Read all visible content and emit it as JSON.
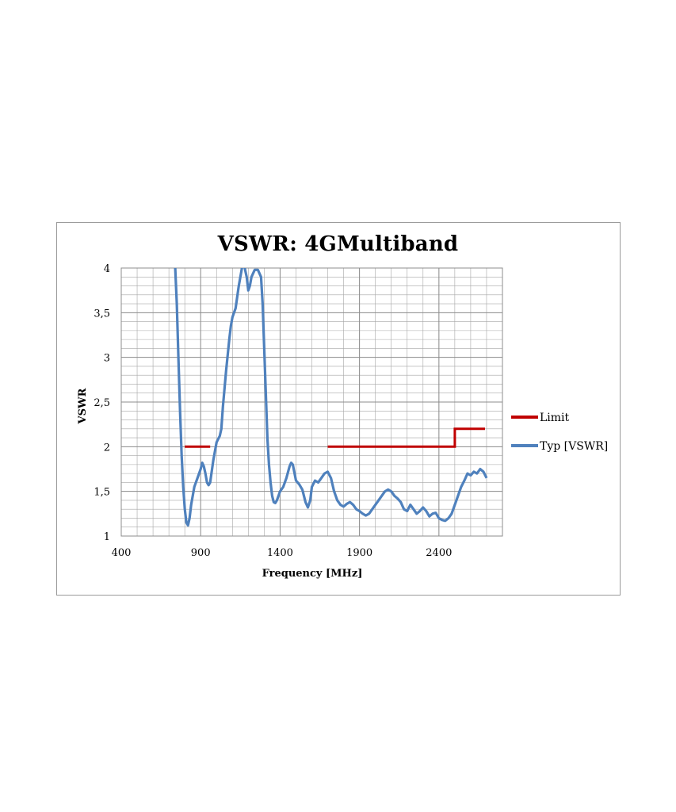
{
  "colors": {
    "limit": "#c00000",
    "typ": "#4f81bd",
    "grid": "#a6a6a6",
    "border": "#9a9a9a"
  },
  "chart_data": {
    "type": "line",
    "title": "VSWR: 4GMultiband",
    "xlabel": "Frequency [MHz]",
    "ylabel": "VSWR",
    "xlim": [
      400,
      2800
    ],
    "ylim": [
      1,
      4
    ],
    "x_ticks": [
      400,
      900,
      1400,
      1900,
      2400
    ],
    "x_tick_labels": [
      "400",
      "900",
      "1400",
      "1900",
      "2400"
    ],
    "y_ticks": [
      1,
      1.5,
      2,
      2.5,
      3,
      3.5,
      4
    ],
    "y_tick_labels": [
      "1",
      "1,5",
      "2",
      "2,5",
      "3",
      "3,5",
      "4"
    ],
    "grid": true,
    "legend_position": "right",
    "series": [
      {
        "name": "Limit",
        "segments": [
          [
            [
              800,
              2.0
            ],
            [
              960,
              2.0
            ]
          ],
          [
            [
              1700,
              2.0
            ],
            [
              2500,
              2.0
            ],
            [
              2500,
              2.2
            ],
            [
              2690,
              2.2
            ]
          ]
        ]
      },
      {
        "name": "Typ [VSWR]",
        "points": [
          [
            740,
            4.0
          ],
          [
            750,
            3.6
          ],
          [
            760,
            3.0
          ],
          [
            770,
            2.4
          ],
          [
            780,
            1.9
          ],
          [
            790,
            1.55
          ],
          [
            800,
            1.3
          ],
          [
            810,
            1.15
          ],
          [
            820,
            1.12
          ],
          [
            830,
            1.2
          ],
          [
            840,
            1.35
          ],
          [
            860,
            1.55
          ],
          [
            880,
            1.65
          ],
          [
            900,
            1.75
          ],
          [
            910,
            1.82
          ],
          [
            920,
            1.78
          ],
          [
            930,
            1.7
          ],
          [
            940,
            1.6
          ],
          [
            950,
            1.57
          ],
          [
            960,
            1.6
          ],
          [
            980,
            1.85
          ],
          [
            1000,
            2.05
          ],
          [
            1020,
            2.12
          ],
          [
            1030,
            2.2
          ],
          [
            1040,
            2.45
          ],
          [
            1060,
            2.85
          ],
          [
            1080,
            3.2
          ],
          [
            1090,
            3.35
          ],
          [
            1100,
            3.45
          ],
          [
            1110,
            3.5
          ],
          [
            1120,
            3.55
          ],
          [
            1140,
            3.8
          ],
          [
            1160,
            4.0
          ],
          [
            1170,
            4.08
          ],
          [
            1180,
            3.98
          ],
          [
            1190,
            3.9
          ],
          [
            1200,
            3.75
          ],
          [
            1210,
            3.8
          ],
          [
            1220,
            3.9
          ],
          [
            1240,
            3.98
          ],
          [
            1260,
            3.98
          ],
          [
            1280,
            3.9
          ],
          [
            1290,
            3.6
          ],
          [
            1300,
            3.1
          ],
          [
            1310,
            2.6
          ],
          [
            1320,
            2.1
          ],
          [
            1330,
            1.8
          ],
          [
            1340,
            1.6
          ],
          [
            1350,
            1.45
          ],
          [
            1360,
            1.38
          ],
          [
            1370,
            1.37
          ],
          [
            1380,
            1.4
          ],
          [
            1400,
            1.5
          ],
          [
            1420,
            1.55
          ],
          [
            1440,
            1.65
          ],
          [
            1460,
            1.78
          ],
          [
            1470,
            1.82
          ],
          [
            1480,
            1.8
          ],
          [
            1500,
            1.62
          ],
          [
            1520,
            1.58
          ],
          [
            1540,
            1.52
          ],
          [
            1560,
            1.38
          ],
          [
            1575,
            1.32
          ],
          [
            1590,
            1.4
          ],
          [
            1600,
            1.55
          ],
          [
            1620,
            1.62
          ],
          [
            1640,
            1.6
          ],
          [
            1660,
            1.65
          ],
          [
            1680,
            1.7
          ],
          [
            1700,
            1.72
          ],
          [
            1720,
            1.65
          ],
          [
            1740,
            1.5
          ],
          [
            1760,
            1.4
          ],
          [
            1780,
            1.35
          ],
          [
            1800,
            1.33
          ],
          [
            1820,
            1.36
          ],
          [
            1840,
            1.38
          ],
          [
            1860,
            1.35
          ],
          [
            1880,
            1.3
          ],
          [
            1900,
            1.28
          ],
          [
            1920,
            1.25
          ],
          [
            1940,
            1.23
          ],
          [
            1960,
            1.25
          ],
          [
            1980,
            1.3
          ],
          [
            2000,
            1.35
          ],
          [
            2020,
            1.4
          ],
          [
            2040,
            1.45
          ],
          [
            2060,
            1.5
          ],
          [
            2080,
            1.52
          ],
          [
            2100,
            1.5
          ],
          [
            2120,
            1.45
          ],
          [
            2140,
            1.42
          ],
          [
            2160,
            1.38
          ],
          [
            2180,
            1.3
          ],
          [
            2200,
            1.28
          ],
          [
            2220,
            1.35
          ],
          [
            2240,
            1.3
          ],
          [
            2260,
            1.25
          ],
          [
            2280,
            1.28
          ],
          [
            2300,
            1.32
          ],
          [
            2320,
            1.28
          ],
          [
            2340,
            1.22
          ],
          [
            2360,
            1.25
          ],
          [
            2380,
            1.26
          ],
          [
            2400,
            1.2
          ],
          [
            2420,
            1.18
          ],
          [
            2440,
            1.17
          ],
          [
            2460,
            1.2
          ],
          [
            2480,
            1.25
          ],
          [
            2500,
            1.35
          ],
          [
            2520,
            1.45
          ],
          [
            2540,
            1.55
          ],
          [
            2560,
            1.62
          ],
          [
            2580,
            1.7
          ],
          [
            2600,
            1.68
          ],
          [
            2620,
            1.72
          ],
          [
            2640,
            1.7
          ],
          [
            2660,
            1.75
          ],
          [
            2680,
            1.72
          ],
          [
            2700,
            1.65
          ]
        ]
      }
    ]
  }
}
